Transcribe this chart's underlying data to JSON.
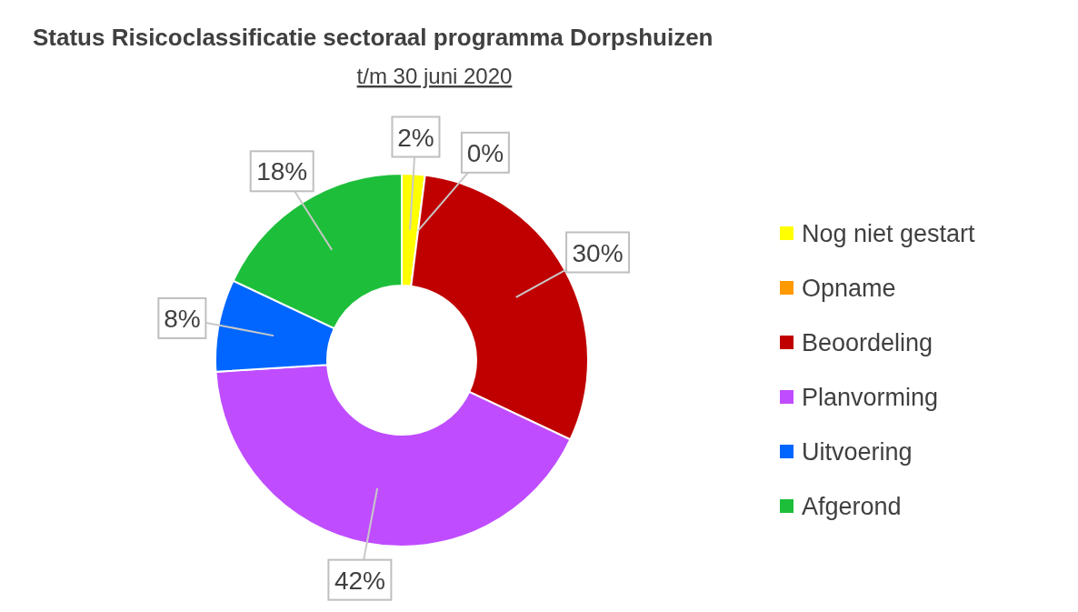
{
  "chart_data": {
    "type": "donut",
    "title": "Status Risicoclassificatie sectoraal programma Dorpshuizen",
    "subtitle": "t/m 30 juni 2020",
    "categories": [
      "Nog niet gestart",
      "Opname",
      "Beoordeling",
      "Planvorming",
      "Uitvoering",
      "Afgerond"
    ],
    "values": [
      2,
      0,
      30,
      42,
      8,
      18
    ],
    "value_labels": [
      "2%",
      "0%",
      "30%",
      "42%",
      "8%",
      "18%"
    ],
    "colors": [
      "#ffff00",
      "#ff9900",
      "#c00000",
      "#bf4dff",
      "#0066ff",
      "#1dbf3a"
    ],
    "legend": "right"
  }
}
